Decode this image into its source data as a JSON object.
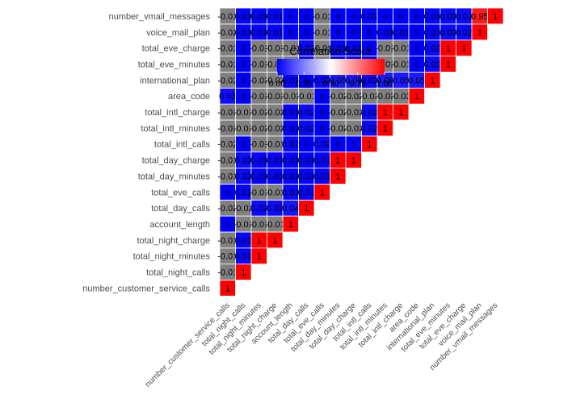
{
  "chart_data": {
    "type": "heatmap",
    "subtype": "lower-triangle correlation matrix",
    "variables": [
      "number_customer_service_calls",
      "total_night_calls",
      "total_night_minutes",
      "total_night_charge",
      "account_length",
      "total_day_calls",
      "total_eve_calls",
      "total_day_minutes",
      "total_day_charge",
      "total_intl_calls",
      "total_intl_minutes",
      "total_intl_charge",
      "area_code",
      "international_plan",
      "total_eve_minutes",
      "total_eve_charge",
      "voice_mail_plan",
      "number_vmail_messages"
    ],
    "x_labels": [
      "number_customer_service_calls",
      "total_night_calls",
      "total_night_minutes",
      "total_night_charge",
      "account_length",
      "total_day_calls",
      "total_eve_calls",
      "total_day_minutes",
      "total_day_charge",
      "total_intl_calls",
      "total_intl_minutes",
      "total_intl_charge",
      "area_code",
      "international_plan",
      "total_eve_minutes",
      "total_eve_charge",
      "voice_mail_plan",
      "number_vmail_messages"
    ],
    "y_labels": [
      "number_vmail_messages",
      "voice_mail_plan",
      "total_eve_charge",
      "total_eve_minutes",
      "international_plan",
      "area_code",
      "total_intl_charge",
      "total_intl_minutes",
      "total_intl_calls",
      "total_day_charge",
      "total_day_minutes",
      "total_eve_calls",
      "total_day_calls",
      "account_length",
      "total_night_charge",
      "total_night_minutes",
      "total_night_calls",
      "number_customer_service_calls"
    ],
    "rows": [
      [
        "1"
      ],
      [
        "-0.01",
        "1"
      ],
      [
        "-0.01",
        "0.01",
        "1"
      ],
      [
        "-0.01",
        "0.01",
        "1",
        "1"
      ],
      [
        "0",
        "-0.01",
        "-0.01",
        "-0.01",
        "1"
      ],
      [
        "-0.02",
        "-0.02",
        "0.02",
        "0.02",
        "0.04",
        "1"
      ],
      [
        "0",
        "0.01",
        "-0.01",
        "-0.01",
        "0.02",
        "0.01",
        "1"
      ],
      [
        "-0.01",
        "0.02",
        "0.01",
        "0.01",
        "0.01",
        "0.01",
        "0.01",
        "1"
      ],
      [
        "-0.01",
        "0.02",
        "0.01",
        "0.01",
        "0.01",
        "0.01",
        "0.01",
        "1",
        "1"
      ],
      [
        "-0.02",
        "0",
        "-0.01",
        "-0.01",
        "0.02",
        "0",
        "0.02",
        "0",
        "0",
        "1"
      ],
      [
        "-0.01",
        "-0.01",
        "-0.02",
        "-0.02",
        "0.01",
        "0.02",
        "0",
        "-0.02",
        "-0.02",
        "0.02",
        "1"
      ],
      [
        "-0.01",
        "-0.01",
        "-0.02",
        "-0.02",
        "0.01",
        "0.02",
        "0",
        "-0.02",
        "-0.02",
        "0.02",
        "1",
        "1"
      ],
      [
        "0.03",
        "0",
        "-0.01",
        "-0.01",
        "-0.01",
        "-0.01",
        "0",
        "-0.02",
        "-0.02",
        "-0.03",
        "-0.03",
        "-0.03",
        "1"
      ],
      [
        "-0.02",
        "0",
        "-0.03",
        "-0.03",
        "0.01",
        "0",
        "0.02",
        "0.05",
        "0.05",
        "0.02",
        "0.05",
        "0.05",
        "0.05",
        "1"
      ],
      [
        "-0.01",
        "0",
        "-0.01",
        "-0.01",
        "-0.01",
        "0.02",
        "-0.01",
        "0.01",
        "0.01",
        "0",
        "-0.01",
        "-0.01",
        "0",
        "0.02",
        "1"
      ],
      [
        "-0.01",
        "0",
        "-0.01",
        "-0.01",
        "-0.01",
        "0.02",
        "-0.01",
        "0.01",
        "0.01",
        "0",
        "-0.01",
        "-0.01",
        "0",
        "0.02",
        "1",
        "1"
      ],
      [
        "-0.02",
        "0.01",
        "0.01",
        "0.01",
        "0",
        "0",
        "-0.01",
        "0",
        "0",
        "0",
        "0.01",
        "0.01",
        "0",
        "0.01",
        "0.02",
        "0.02",
        "1"
      ],
      [
        "-0.01",
        "0.01",
        "0.01",
        "0.01",
        "0",
        "0",
        "-0.01",
        "0",
        "0",
        "0.01",
        "0",
        "0",
        "0",
        "0.01",
        "0.02",
        "0.02",
        "0.95",
        "1"
      ]
    ],
    "value_range": [
      0,
      1
    ],
    "legend": {
      "title": "Correlation Score",
      "ticks": [
        "0.00",
        "0.25",
        "0.50",
        "0.75",
        "1.00"
      ],
      "position": "top-center"
    },
    "colors": {
      "low": "#0000ff",
      "mid": "#ffffff",
      "high": "#ff0000",
      "negative": "#808080",
      "grid": "#ffffff"
    },
    "grid": false
  }
}
